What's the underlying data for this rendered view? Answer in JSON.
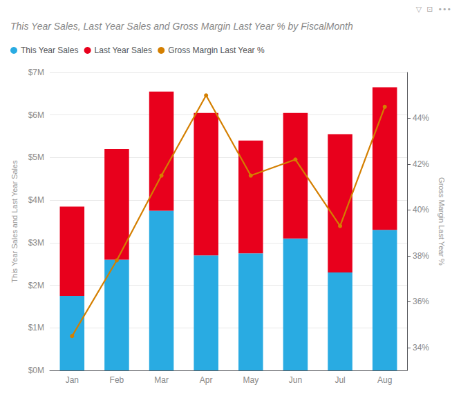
{
  "chart_data": {
    "type": "bar",
    "title": "This Year Sales, Last Year Sales and Gross Margin Last Year % by FiscalMonth",
    "annotations": [
      "▽  ⊡  •••"
    ],
    "categories": [
      "Jan",
      "Feb",
      "Mar",
      "Apr",
      "May",
      "Jun",
      "Jul",
      "Aug"
    ],
    "series": [
      {
        "name": "This Year Sales",
        "type": "bar",
        "color": "#29abe2",
        "values": [
          1.75,
          2.6,
          3.75,
          2.7,
          2.75,
          3.1,
          2.3,
          3.3
        ]
      },
      {
        "name": "Last Year Sales",
        "type": "bar",
        "color": "#e8001c",
        "values": [
          2.1,
          2.6,
          2.8,
          3.35,
          2.65,
          2.95,
          3.25,
          3.35
        ]
      },
      {
        "name": "Gross Margin Last Year %",
        "type": "line",
        "axis": "y2",
        "marker": "circle",
        "color": "#d47f00",
        "values": [
          34.5,
          37.8,
          41.5,
          45.0,
          41.5,
          42.2,
          39.3,
          44.5
        ]
      }
    ],
    "stacked": true,
    "ylabel": "This Year Sales and Last Year Sales",
    "y2label": "Gross Margin Last Year %",
    "ylim": [
      0,
      7
    ],
    "yticks": [
      {
        "value": 0,
        "label": "$0M"
      },
      {
        "value": 1,
        "label": "$1M"
      },
      {
        "value": 2,
        "label": "$2M"
      },
      {
        "value": 3,
        "label": "$3M"
      },
      {
        "value": 4,
        "label": "$4M"
      },
      {
        "value": 5,
        "label": "$5M"
      },
      {
        "value": 6,
        "label": "$6M"
      },
      {
        "value": 7,
        "label": "$7M"
      }
    ],
    "y2lim": [
      33,
      46
    ],
    "y2ticks": [
      {
        "value": 34,
        "label": "34%"
      },
      {
        "value": 36,
        "label": "36%"
      },
      {
        "value": 38,
        "label": "38%"
      },
      {
        "value": 40,
        "label": "40%"
      },
      {
        "value": 42,
        "label": "42%"
      },
      {
        "value": 44,
        "label": "44%"
      }
    ],
    "grid": true,
    "legend": "top-left"
  }
}
